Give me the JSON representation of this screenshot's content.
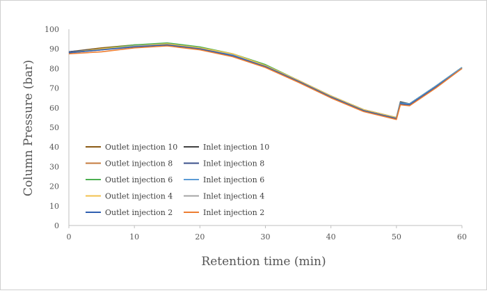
{
  "chart_data": {
    "type": "line",
    "title": "",
    "xlabel": "Retention time (min)",
    "ylabel": "Column Pressure (bar)",
    "xlim": [
      0,
      60
    ],
    "ylim": [
      0,
      100
    ],
    "xticks": [
      0,
      10,
      20,
      30,
      40,
      50,
      60
    ],
    "yticks": [
      0,
      10,
      20,
      30,
      40,
      50,
      60,
      70,
      80,
      90,
      100
    ],
    "grid": false,
    "legend": "lower-left",
    "series": [
      {
        "name": "Outlet injection 10",
        "color": "#8a5a14",
        "x": [
          0,
          5,
          10,
          15,
          20,
          25,
          30,
          35,
          40,
          45,
          50,
          50.6,
          52,
          56,
          60
        ],
        "y": [
          88.5,
          90.5,
          92,
          92.5,
          90.5,
          87,
          81.5,
          74,
          65.5,
          58.5,
          54.5,
          62.5,
          62,
          71,
          80.5
        ]
      },
      {
        "name": "Inlet injection 10",
        "color": "#404040",
        "x": [
          0,
          5,
          10,
          15,
          20,
          25,
          30,
          35,
          40,
          45,
          50,
          50.6,
          52,
          56,
          60
        ],
        "y": [
          88.5,
          90,
          91.5,
          92,
          90.5,
          87,
          81.5,
          74,
          66,
          59,
          55,
          63,
          62,
          71,
          80.5
        ]
      },
      {
        "name": "Outlet injection 8",
        "color": "#c47a3c",
        "x": [
          0,
          5,
          10,
          15,
          20,
          25,
          30,
          35,
          40,
          45,
          50,
          50.6,
          52,
          56,
          60
        ],
        "y": [
          88,
          90,
          91.5,
          92,
          90,
          86.5,
          81,
          73.5,
          65.5,
          58.5,
          54.5,
          62,
          61.5,
          70.5,
          80
        ]
      },
      {
        "name": "Inlet injection 8",
        "color": "#3a4f8a",
        "x": [
          0,
          5,
          10,
          15,
          20,
          25,
          30,
          35,
          40,
          45,
          50,
          50.6,
          52,
          56,
          60
        ],
        "y": [
          88.5,
          90,
          91.5,
          92.5,
          90.5,
          87,
          81.5,
          74,
          66,
          59,
          55,
          62.5,
          62,
          71,
          80.5
        ]
      },
      {
        "name": "Outlet injection 6",
        "color": "#4caf50",
        "x": [
          0,
          5,
          10,
          15,
          20,
          25,
          30,
          35,
          40,
          45,
          50,
          50.6,
          52,
          56,
          60
        ],
        "y": [
          88,
          90,
          92,
          93,
          91,
          87.5,
          82,
          74,
          66,
          59,
          55,
          62.5,
          62,
          71,
          80.5
        ]
      },
      {
        "name": "Inlet injection 6",
        "color": "#5b9bd5",
        "x": [
          0,
          5,
          10,
          15,
          20,
          25,
          30,
          35,
          40,
          45,
          50,
          50.6,
          52,
          56,
          60
        ],
        "y": [
          88,
          89.5,
          91.5,
          92.5,
          90.5,
          87,
          81.5,
          74,
          66,
          59,
          55,
          62.5,
          62,
          71,
          80.5
        ]
      },
      {
        "name": "Outlet injection 4",
        "color": "#f2c14e",
        "x": [
          0,
          5,
          10,
          15,
          20,
          25,
          30,
          35,
          40,
          45,
          50,
          50.6,
          52,
          56,
          60
        ],
        "y": [
          88,
          90,
          91.5,
          92.5,
          90.5,
          87.5,
          81.5,
          74,
          66,
          59,
          55,
          62,
          61.5,
          70.5,
          80
        ]
      },
      {
        "name": "Inlet injection 4",
        "color": "#a5a5a5",
        "x": [
          0,
          5,
          10,
          15,
          20,
          25,
          30,
          35,
          40,
          45,
          50,
          50.6,
          52,
          56,
          60
        ],
        "y": [
          88,
          89.5,
          91.5,
          92,
          90,
          86.5,
          81,
          73.5,
          65.5,
          58.5,
          54.5,
          62,
          61.5,
          70.5,
          80
        ]
      },
      {
        "name": "Outlet injection 2",
        "color": "#2e5fb0",
        "x": [
          0,
          5,
          10,
          15,
          20,
          25,
          30,
          35,
          40,
          45,
          50,
          50.6,
          52,
          56,
          60
        ],
        "y": [
          88,
          89.5,
          91,
          92,
          90,
          86.5,
          81,
          73.5,
          65.5,
          58.5,
          54.5,
          62,
          61.5,
          70.5,
          80
        ]
      },
      {
        "name": "Inlet injection 2",
        "color": "#ed7d31",
        "x": [
          0,
          5,
          10,
          15,
          20,
          25,
          30,
          35,
          40,
          45,
          50,
          50.6,
          52,
          56,
          60
        ],
        "y": [
          87.5,
          88.5,
          90.5,
          91.5,
          89.5,
          86,
          80.5,
          73,
          65,
          58,
          54,
          61.5,
          61,
          70,
          80
        ]
      }
    ]
  }
}
